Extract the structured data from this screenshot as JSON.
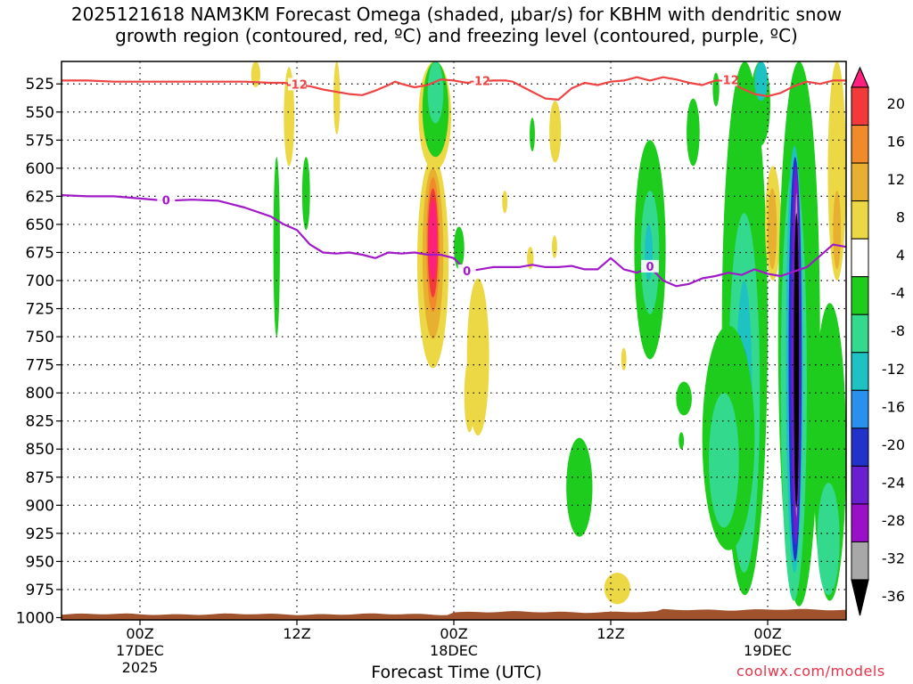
{
  "title_line1": "2025121618 NAM3KM Forecast Omega (shaded, μbar/s) for KBHM with dendritic snow",
  "title_line2": "growth region (contoured, red, ºC) and freezing level (contoured, purple, ºC)",
  "xlabel": "Forecast Time (UTC)",
  "credit": "coolwx.com/models",
  "chart_data": {
    "type": "heatmap",
    "x_axis": {
      "ticks": [
        {
          "label": "00Z",
          "sub": "17DEC",
          "sub2": "2025",
          "hour": 0
        },
        {
          "label": "12Z",
          "sub": "",
          "sub2": "",
          "hour": 12
        },
        {
          "label": "00Z",
          "sub": "18DEC",
          "sub2": "",
          "hour": 24
        },
        {
          "label": "12Z",
          "sub": "",
          "sub2": "",
          "hour": 36
        },
        {
          "label": "00Z",
          "sub": "19DEC",
          "sub2": "",
          "hour": 48
        }
      ],
      "range_hours": [
        -6,
        54
      ]
    },
    "y_axis": {
      "levels": [
        525,
        550,
        575,
        600,
        625,
        650,
        675,
        700,
        725,
        750,
        775,
        800,
        825,
        850,
        875,
        900,
        925,
        950,
        975,
        1000
      ],
      "range_hPa": [
        505,
        1002
      ],
      "units": "hPa"
    },
    "colorbar": {
      "labels": [
        20,
        16,
        12,
        8,
        4,
        -4,
        -8,
        -12,
        -16,
        -20,
        -24,
        -28,
        -32,
        -36
      ],
      "colors": [
        "#ff1f7f",
        "#f23a3a",
        "#f08a2a",
        "#e8b030",
        "#ecd845",
        "#ffffff",
        "#1ecc1e",
        "#33d98c",
        "#1ec2c2",
        "#2a90ee",
        "#2233cc",
        "#6a1fd0",
        "#9a10c8",
        "#a8a8a8",
        "#000000"
      ],
      "units": "μbar/s"
    },
    "contours": [
      {
        "name": "dendritic snow growth region",
        "label": "-12",
        "color": "#ee4444",
        "points": [
          [
            -6,
            522
          ],
          [
            -4,
            522
          ],
          [
            -2,
            523
          ],
          [
            0,
            523
          ],
          [
            2,
            523
          ],
          [
            4,
            523
          ],
          [
            6,
            523
          ],
          [
            8,
            523
          ],
          [
            10,
            524
          ],
          [
            11,
            524
          ],
          [
            12,
            526
          ],
          [
            13,
            527
          ],
          [
            14,
            530
          ],
          [
            15,
            532
          ],
          [
            16,
            534
          ],
          [
            17,
            535
          ],
          [
            18,
            531
          ],
          [
            19,
            526
          ],
          [
            19.5,
            523
          ],
          [
            20,
            525
          ],
          [
            21,
            528
          ],
          [
            22,
            526
          ],
          [
            23,
            521
          ],
          [
            24,
            522
          ],
          [
            25,
            524
          ],
          [
            26,
            523
          ],
          [
            27,
            522
          ],
          [
            28,
            522
          ],
          [
            28.5,
            523
          ],
          [
            29,
            526
          ],
          [
            30,
            532
          ],
          [
            30.5,
            535
          ],
          [
            31,
            538
          ],
          [
            32,
            539
          ],
          [
            33,
            529
          ],
          [
            34,
            524
          ],
          [
            35,
            526
          ],
          [
            36,
            523
          ],
          [
            37,
            522
          ],
          [
            38,
            519
          ],
          [
            39,
            522
          ],
          [
            40,
            519
          ],
          [
            41,
            521
          ],
          [
            42,
            524
          ],
          [
            43,
            526
          ],
          [
            44,
            522
          ],
          [
            45,
            522
          ],
          [
            46,
            529
          ],
          [
            47,
            534
          ],
          [
            48,
            536
          ],
          [
            49,
            533
          ],
          [
            50,
            527
          ],
          [
            51,
            523
          ],
          [
            52,
            525
          ],
          [
            53,
            522
          ],
          [
            54,
            522
          ]
        ]
      },
      {
        "name": "freezing level",
        "label": "0",
        "color": "#a01ac8",
        "points": [
          [
            -6,
            624
          ],
          [
            -4,
            625
          ],
          [
            -2,
            625
          ],
          [
            0,
            627
          ],
          [
            2,
            629
          ],
          [
            4,
            628
          ],
          [
            6,
            629
          ],
          [
            8,
            635
          ],
          [
            10,
            643
          ],
          [
            11,
            650
          ],
          [
            12,
            655
          ],
          [
            13,
            668
          ],
          [
            14,
            675
          ],
          [
            15,
            676
          ],
          [
            16,
            675
          ],
          [
            17,
            677
          ],
          [
            18,
            680
          ],
          [
            19,
            675
          ],
          [
            20,
            676
          ],
          [
            21,
            675
          ],
          [
            22,
            677
          ],
          [
            23,
            677
          ],
          [
            24,
            680
          ],
          [
            25,
            692
          ],
          [
            26,
            690
          ],
          [
            27,
            688
          ],
          [
            28,
            688
          ],
          [
            29,
            688
          ],
          [
            30,
            686
          ],
          [
            31,
            688
          ],
          [
            32,
            688
          ],
          [
            33,
            687
          ],
          [
            34,
            690
          ],
          [
            35,
            690
          ],
          [
            36,
            680
          ],
          [
            37,
            690
          ],
          [
            38,
            693
          ],
          [
            39,
            688
          ],
          [
            40,
            700
          ],
          [
            41,
            705
          ],
          [
            42,
            703
          ],
          [
            43,
            698
          ],
          [
            44,
            696
          ],
          [
            45,
            693
          ],
          [
            46,
            695
          ],
          [
            47,
            690
          ],
          [
            48,
            694
          ],
          [
            49,
            696
          ],
          [
            50,
            692
          ],
          [
            51,
            688
          ],
          [
            52,
            678
          ],
          [
            53,
            668
          ],
          [
            54,
            670
          ]
        ]
      }
    ],
    "omega_regions": [
      {
        "cat": 4,
        "t": [
          21.3,
          23.8
        ],
        "p": [
          505,
          602
        ]
      },
      {
        "cat": 6,
        "t": [
          21.6,
          23.6
        ],
        "p": [
          505,
          590
        ]
      },
      {
        "cat": 7,
        "t": [
          22.0,
          23.2
        ],
        "p": [
          505,
          560
        ]
      },
      {
        "cat": 4,
        "t": [
          21.2,
          23.6
        ],
        "p": [
          590,
          778
        ]
      },
      {
        "cat": 3,
        "t": [
          21.6,
          23.2
        ],
        "p": [
          600,
          752
        ]
      },
      {
        "cat": 2,
        "t": [
          21.9,
          22.9
        ],
        "p": [
          608,
          728
        ]
      },
      {
        "cat": 1,
        "t": [
          22.0,
          22.8
        ],
        "p": [
          618,
          715
        ]
      },
      {
        "cat": 0,
        "t": [
          22.1,
          22.7
        ],
        "p": [
          628,
          700
        ]
      },
      {
        "cat": 4,
        "t": [
          25.0,
          26.7
        ],
        "p": [
          698,
          838
        ]
      },
      {
        "cat": 4,
        "t": [
          24.8,
          25.6
        ],
        "p": [
          770,
          835
        ]
      },
      {
        "cat": 4,
        "t": [
          8.5,
          9.2
        ],
        "p": [
          505,
          528
        ]
      },
      {
        "cat": 4,
        "t": [
          14.8,
          15.3
        ],
        "p": [
          505,
          570
        ]
      },
      {
        "cat": 4,
        "t": [
          11.0,
          11.8
        ],
        "p": [
          510,
          598
        ]
      },
      {
        "cat": 6,
        "t": [
          10.2,
          10.7
        ],
        "p": [
          590,
          750
        ]
      },
      {
        "cat": 6,
        "t": [
          12.4,
          13.0
        ],
        "p": [
          590,
          655
        ]
      },
      {
        "cat": 6,
        "t": [
          24.0,
          24.8
        ],
        "p": [
          652,
          690
        ]
      },
      {
        "cat": 4,
        "t": [
          31.3,
          32.2
        ],
        "p": [
          540,
          595
        ]
      },
      {
        "cat": 6,
        "t": [
          29.8,
          30.2
        ],
        "p": [
          555,
          585
        ]
      },
      {
        "cat": 4,
        "t": [
          27.7,
          28.1
        ],
        "p": [
          620,
          640
        ]
      },
      {
        "cat": 4,
        "t": [
          31.5,
          31.9
        ],
        "p": [
          660,
          680
        ]
      },
      {
        "cat": 4,
        "t": [
          29.6,
          30.1
        ],
        "p": [
          670,
          690
        ]
      },
      {
        "cat": 4,
        "t": [
          36.8,
          37.2
        ],
        "p": [
          760,
          780
        ]
      },
      {
        "cat": 4,
        "t": [
          35.5,
          37.5
        ],
        "p": [
          960,
          988
        ]
      },
      {
        "cat": 6,
        "t": [
          32.6,
          34.6
        ],
        "p": [
          840,
          928
        ]
      },
      {
        "cat": 6,
        "t": [
          41.0,
          42.2
        ],
        "p": [
          790,
          820
        ]
      },
      {
        "cat": 6,
        "t": [
          41.2,
          41.6
        ],
        "p": [
          835,
          850
        ]
      },
      {
        "cat": 6,
        "t": [
          37.8,
          40.2
        ],
        "p": [
          575,
          770
        ]
      },
      {
        "cat": 7,
        "t": [
          38.3,
          39.7
        ],
        "p": [
          620,
          730
        ]
      },
      {
        "cat": 8,
        "t": [
          38.6,
          39.2
        ],
        "p": [
          650,
          700
        ]
      },
      {
        "cat": 6,
        "t": [
          41.8,
          42.8
        ],
        "p": [
          538,
          598
        ]
      },
      {
        "cat": 6,
        "t": [
          44.5,
          48.0
        ],
        "p": [
          505,
          980
        ]
      },
      {
        "cat": 7,
        "t": [
          45.0,
          47.4
        ],
        "p": [
          640,
          960
        ]
      },
      {
        "cat": 8,
        "t": [
          45.6,
          46.8
        ],
        "p": [
          700,
          900
        ]
      },
      {
        "cat": 9,
        "t": [
          45.9,
          46.4
        ],
        "p": [
          760,
          780
        ]
      },
      {
        "cat": 6,
        "t": [
          43.0,
          47.0
        ],
        "p": [
          740,
          940
        ]
      },
      {
        "cat": 7,
        "t": [
          43.5,
          45.8
        ],
        "p": [
          800,
          920
        ]
      },
      {
        "cat": 6,
        "t": [
          46.7,
          48.2
        ],
        "p": [
          505,
          580
        ]
      },
      {
        "cat": 8,
        "t": [
          47.0,
          48.0
        ],
        "p": [
          505,
          540
        ]
      },
      {
        "cat": 4,
        "t": [
          47.8,
          49.0
        ],
        "p": [
          598,
          700
        ]
      },
      {
        "cat": 3,
        "t": [
          48.0,
          48.7
        ],
        "p": [
          618,
          690
        ]
      },
      {
        "cat": 6,
        "t": [
          48.8,
          52.0
        ],
        "p": [
          505,
          990
        ]
      },
      {
        "cat": 7,
        "t": [
          49.0,
          51.0
        ],
        "p": [
          600,
          985
        ]
      },
      {
        "cat": 8,
        "t": [
          49.4,
          50.7
        ],
        "p": [
          580,
          960
        ]
      },
      {
        "cat": 10,
        "t": [
          49.6,
          50.6
        ],
        "p": [
          590,
          950
        ]
      },
      {
        "cat": 11,
        "t": [
          49.8,
          50.5
        ],
        "p": [
          598,
          935
        ]
      },
      {
        "cat": 12,
        "t": [
          50.0,
          50.4
        ],
        "p": [
          608,
          915
        ]
      },
      {
        "cat": 13,
        "t": [
          50.1,
          50.3
        ],
        "p": [
          622,
          910
        ]
      },
      {
        "cat": 14,
        "t": [
          50.0,
          50.4
        ],
        "p": [
          640,
          902
        ]
      },
      {
        "cat": 6,
        "t": [
          51.5,
          54.0
        ],
        "p": [
          720,
          985
        ]
      },
      {
        "cat": 7,
        "t": [
          51.8,
          53.5
        ],
        "p": [
          880,
          980
        ]
      },
      {
        "cat": 4,
        "t": [
          52.6,
          54.0
        ],
        "p": [
          505,
          700
        ]
      },
      {
        "cat": 3,
        "t": [
          53.0,
          53.6
        ],
        "p": [
          620,
          690
        ]
      },
      {
        "cat": 6,
        "t": [
          43.8,
          44.3
        ],
        "p": [
          515,
          545
        ]
      },
      {
        "cat": 6,
        "t": [
          52.5,
          53.5
        ],
        "p": [
          840,
          860
        ]
      }
    ]
  }
}
